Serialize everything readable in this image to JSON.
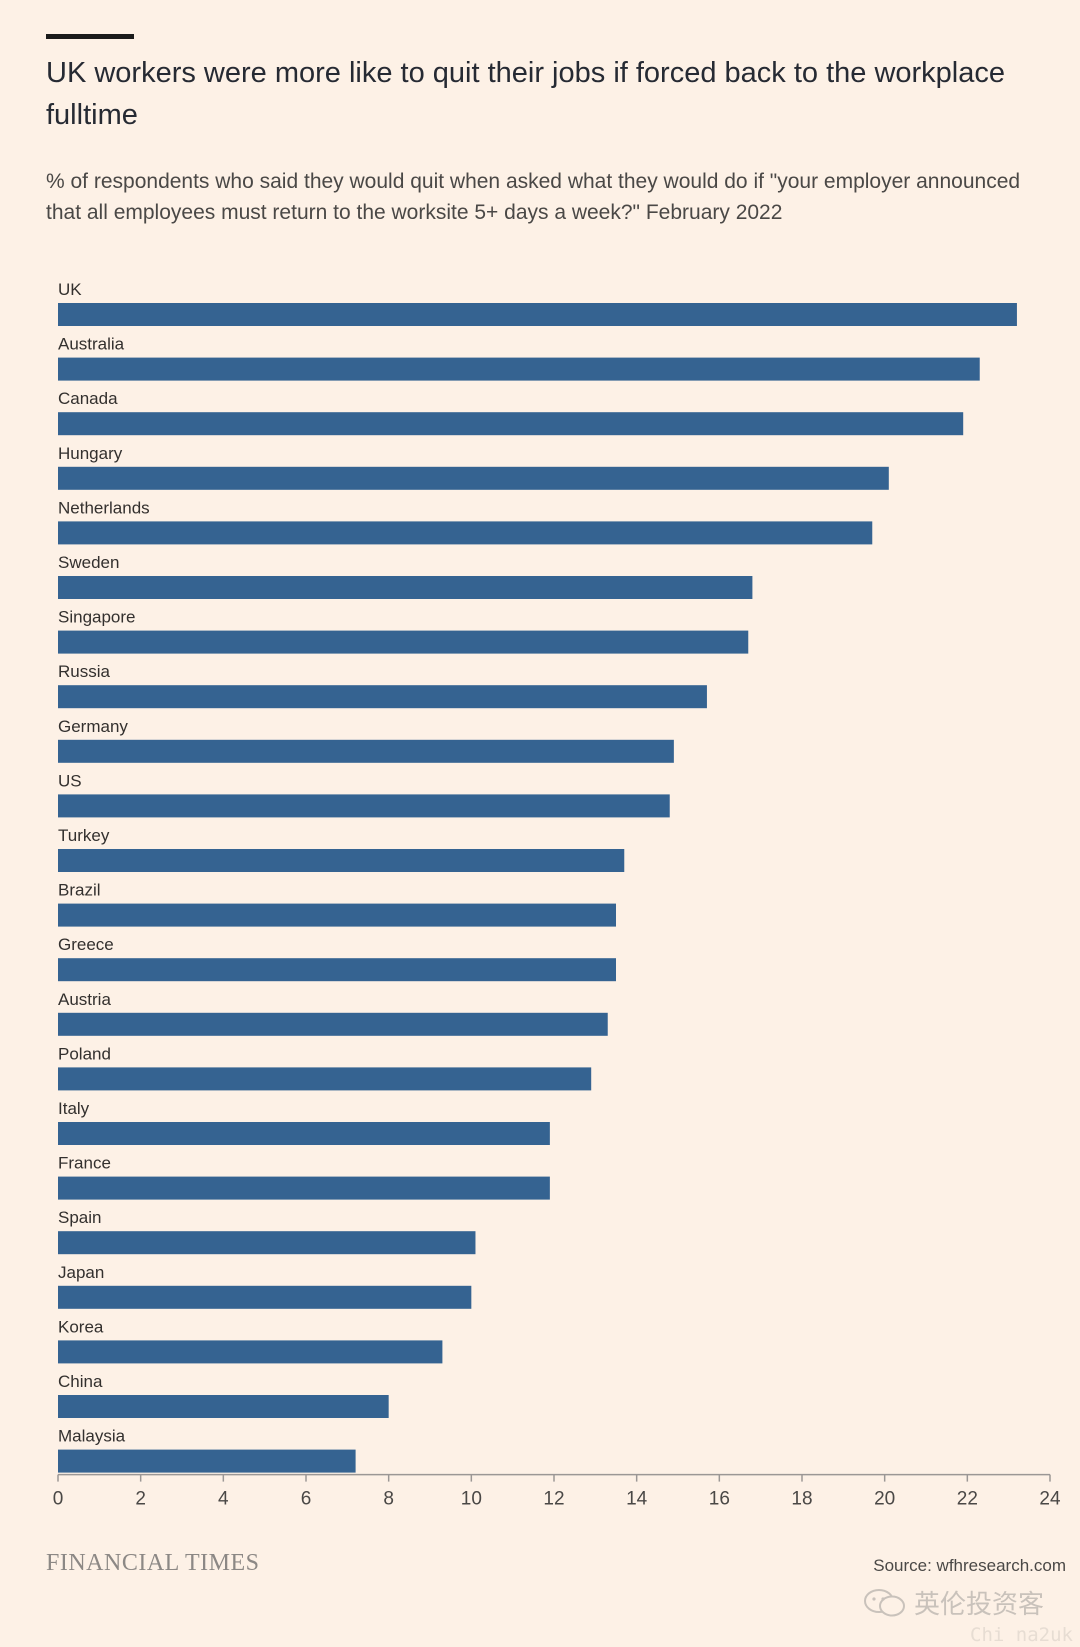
{
  "header": {
    "title": "UK workers were more like to quit their jobs if forced back to the workplace fulltime",
    "subtitle": "% of respondents who said they would quit when asked what they would do if \"your employer announced that all employees must return to the worksite 5+ days a week?\" February 2022"
  },
  "footer": {
    "brand": "FINANCIAL TIMES",
    "source": "Source: wfhresearch.com",
    "watermark": "英伦投资客",
    "watermark_sub": "Chi na2uk"
  },
  "colors": {
    "bar": "#356391",
    "axis": "#9b9795",
    "background": "#fdf1e6"
  },
  "chart_data": {
    "type": "bar",
    "orientation": "horizontal",
    "title": "UK workers were more like to quit their jobs if forced back to the workplace fulltime",
    "xlabel": "",
    "ylabel": "",
    "xlim": [
      0,
      24
    ],
    "x_ticks": [
      0,
      2,
      4,
      6,
      8,
      10,
      12,
      14,
      16,
      18,
      20,
      22,
      24
    ],
    "grid": false,
    "categories": [
      "UK",
      "Australia",
      "Canada",
      "Hungary",
      "Netherlands",
      "Sweden",
      "Singapore",
      "Russia",
      "Germany",
      "US",
      "Turkey",
      "Brazil",
      "Greece",
      "Austria",
      "Poland",
      "Italy",
      "France",
      "Spain",
      "Japan",
      "Korea",
      "China",
      "Malaysia"
    ],
    "values": [
      23.2,
      22.3,
      21.9,
      20.1,
      19.7,
      16.8,
      16.7,
      15.7,
      14.9,
      14.8,
      13.7,
      13.5,
      13.5,
      13.3,
      12.9,
      11.9,
      11.9,
      10.1,
      10.0,
      9.3,
      8.0,
      7.2
    ]
  }
}
